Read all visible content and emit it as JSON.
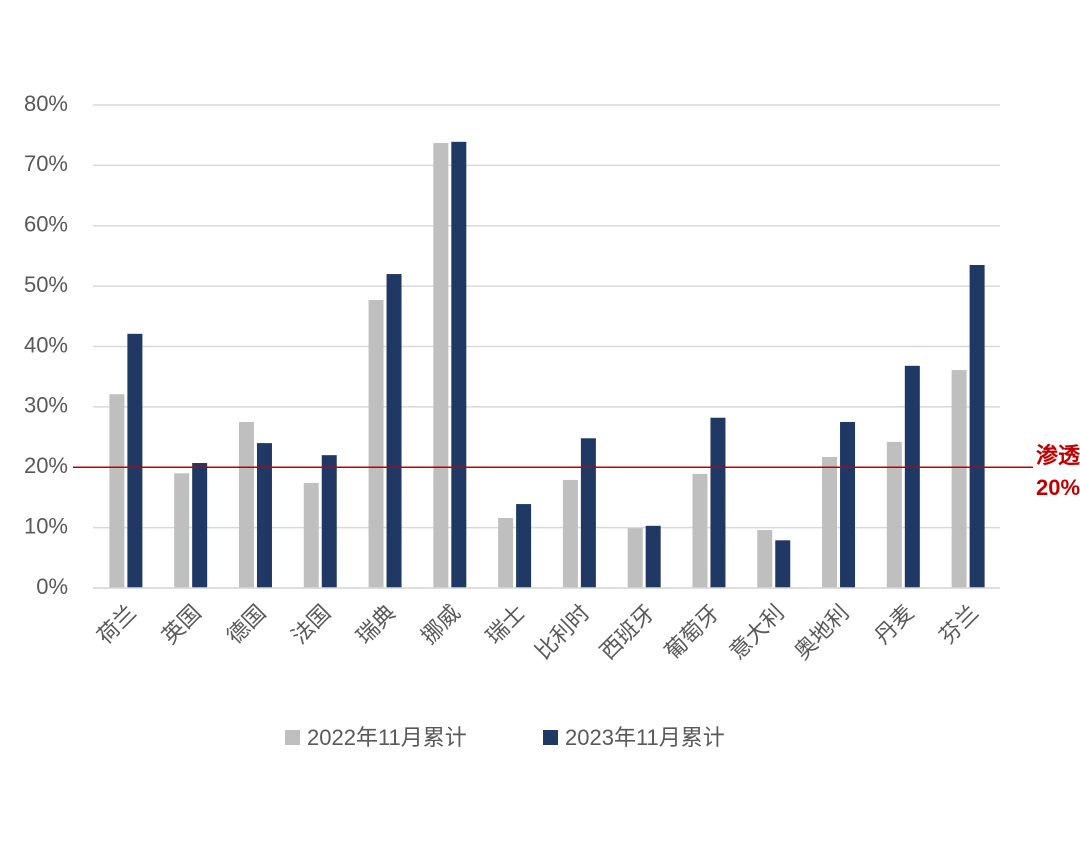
{
  "chart_data": {
    "type": "bar",
    "categories": [
      "荷兰",
      "英国",
      "德国",
      "法国",
      "瑞典",
      "挪威",
      "瑞士",
      "比利时",
      "西班牙",
      "葡萄牙",
      "意大利",
      "奥地利",
      "丹麦",
      "芬兰"
    ],
    "series": [
      {
        "name": "2022年11月累计",
        "color": "#bfbfbf",
        "values": [
          32.1,
          19.0,
          27.5,
          17.4,
          47.7,
          73.7,
          11.6,
          17.9,
          9.9,
          18.9,
          9.6,
          21.7,
          24.2,
          36.1
        ]
      },
      {
        "name": "2023年11月累计",
        "color": "#1f3864",
        "values": [
          42.1,
          20.7,
          24.0,
          22.0,
          52.0,
          73.9,
          13.9,
          24.8,
          10.3,
          28.2,
          7.9,
          27.5,
          36.8,
          53.5
        ]
      }
    ],
    "ylim": [
      0,
      80
    ],
    "yticks": [
      {
        "value": 0,
        "label": "0%"
      },
      {
        "value": 10,
        "label": "10%"
      },
      {
        "value": 20,
        "label": "20%"
      },
      {
        "value": 30,
        "label": "30%"
      },
      {
        "value": 40,
        "label": "40%"
      },
      {
        "value": 50,
        "label": "50%"
      },
      {
        "value": 60,
        "label": "60%"
      },
      {
        "value": 70,
        "label": "70%"
      },
      {
        "value": 80,
        "label": "80%"
      }
    ],
    "grid": true,
    "reference_line": {
      "value": 20,
      "label": "20%",
      "color": "#c00000"
    },
    "annotation": "渗透"
  }
}
